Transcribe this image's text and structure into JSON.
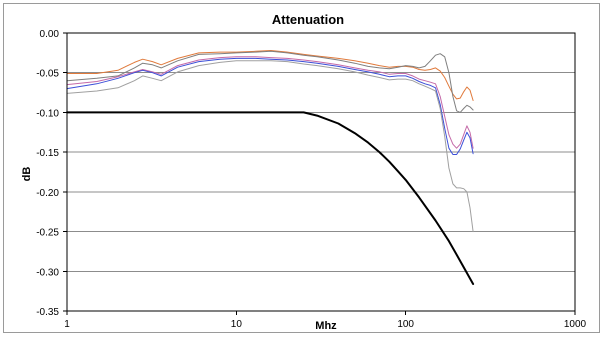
{
  "chart_data": {
    "type": "line",
    "title": "Attenuation",
    "xlabel": "Mhz",
    "ylabel": "dB",
    "x_scale": "log",
    "xlim": [
      1,
      1000
    ],
    "ylim": [
      -0.35,
      0.0
    ],
    "x_ticks": [
      "1",
      "10",
      "100",
      "1000"
    ],
    "y_ticks": [
      "0.00",
      "-0.05",
      "-0.10",
      "-0.15",
      "-0.20",
      "-0.25",
      "-0.30",
      "-0.35"
    ],
    "grid": "horizontal",
    "legend": "none",
    "series": [
      {
        "color": "#e07a3c",
        "width": 1,
        "points": [
          [
            1,
            -0.051
          ],
          [
            1.5,
            -0.051
          ],
          [
            2,
            -0.047
          ],
          [
            2.5,
            -0.037
          ],
          [
            2.8,
            -0.033
          ],
          [
            3.2,
            -0.036
          ],
          [
            3.6,
            -0.04
          ],
          [
            4.5,
            -0.032
          ],
          [
            6,
            -0.025
          ],
          [
            8,
            -0.024
          ],
          [
            10,
            -0.024
          ],
          [
            13,
            -0.023
          ],
          [
            16,
            -0.022
          ],
          [
            20,
            -0.024
          ],
          [
            25,
            -0.027
          ],
          [
            30,
            -0.029
          ],
          [
            40,
            -0.032
          ],
          [
            50,
            -0.035
          ],
          [
            60,
            -0.038
          ],
          [
            70,
            -0.041
          ],
          [
            80,
            -0.043
          ],
          [
            90,
            -0.042
          ],
          [
            100,
            -0.042
          ],
          [
            110,
            -0.043
          ],
          [
            120,
            -0.046
          ],
          [
            130,
            -0.047
          ],
          [
            140,
            -0.046
          ],
          [
            150,
            -0.044
          ],
          [
            160,
            -0.048
          ],
          [
            170,
            -0.056
          ],
          [
            180,
            -0.067
          ],
          [
            190,
            -0.077
          ],
          [
            200,
            -0.083
          ],
          [
            210,
            -0.082
          ],
          [
            220,
            -0.074
          ],
          [
            230,
            -0.068
          ],
          [
            240,
            -0.072
          ],
          [
            250,
            -0.085
          ]
        ]
      },
      {
        "color": "#7f7f7f",
        "width": 1,
        "points": [
          [
            1,
            -0.06
          ],
          [
            1.5,
            -0.057
          ],
          [
            2,
            -0.054
          ],
          [
            2.5,
            -0.044
          ],
          [
            2.8,
            -0.038
          ],
          [
            3.2,
            -0.04
          ],
          [
            3.6,
            -0.044
          ],
          [
            4.5,
            -0.035
          ],
          [
            6,
            -0.027
          ],
          [
            8,
            -0.026
          ],
          [
            10,
            -0.025
          ],
          [
            13,
            -0.024
          ],
          [
            16,
            -0.023
          ],
          [
            20,
            -0.025
          ],
          [
            25,
            -0.028
          ],
          [
            30,
            -0.03
          ],
          [
            40,
            -0.034
          ],
          [
            50,
            -0.038
          ],
          [
            60,
            -0.042
          ],
          [
            70,
            -0.044
          ],
          [
            80,
            -0.045
          ],
          [
            90,
            -0.043
          ],
          [
            100,
            -0.041
          ],
          [
            110,
            -0.042
          ],
          [
            120,
            -0.044
          ],
          [
            130,
            -0.042
          ],
          [
            140,
            -0.035
          ],
          [
            150,
            -0.028
          ],
          [
            160,
            -0.026
          ],
          [
            170,
            -0.03
          ],
          [
            180,
            -0.05
          ],
          [
            190,
            -0.08
          ],
          [
            200,
            -0.098
          ],
          [
            210,
            -0.1
          ],
          [
            220,
            -0.095
          ],
          [
            230,
            -0.091
          ],
          [
            240,
            -0.093
          ],
          [
            250,
            -0.097
          ]
        ]
      },
      {
        "color": "#c46aa8",
        "width": 1,
        "points": [
          [
            1,
            -0.065
          ],
          [
            1.5,
            -0.061
          ],
          [
            2,
            -0.055
          ],
          [
            2.5,
            -0.049
          ],
          [
            2.8,
            -0.046
          ],
          [
            3.2,
            -0.049
          ],
          [
            3.6,
            -0.052
          ],
          [
            4.5,
            -0.041
          ],
          [
            6,
            -0.034
          ],
          [
            8,
            -0.031
          ],
          [
            10,
            -0.03
          ],
          [
            13,
            -0.03
          ],
          [
            16,
            -0.031
          ],
          [
            20,
            -0.032
          ],
          [
            25,
            -0.034
          ],
          [
            30,
            -0.036
          ],
          [
            40,
            -0.04
          ],
          [
            50,
            -0.044
          ],
          [
            60,
            -0.047
          ],
          [
            70,
            -0.049
          ],
          [
            80,
            -0.052
          ],
          [
            90,
            -0.051
          ],
          [
            100,
            -0.051
          ],
          [
            110,
            -0.054
          ],
          [
            120,
            -0.058
          ],
          [
            130,
            -0.06
          ],
          [
            140,
            -0.062
          ],
          [
            150,
            -0.064
          ],
          [
            160,
            -0.08
          ],
          [
            170,
            -0.105
          ],
          [
            180,
            -0.128
          ],
          [
            190,
            -0.14
          ],
          [
            200,
            -0.145
          ],
          [
            210,
            -0.14
          ],
          [
            220,
            -0.128
          ],
          [
            230,
            -0.117
          ],
          [
            240,
            -0.125
          ],
          [
            250,
            -0.145
          ]
        ]
      },
      {
        "color": "#3c4fd8",
        "width": 1,
        "points": [
          [
            1,
            -0.07
          ],
          [
            1.5,
            -0.064
          ],
          [
            2,
            -0.057
          ],
          [
            2.5,
            -0.05
          ],
          [
            2.8,
            -0.047
          ],
          [
            3.2,
            -0.05
          ],
          [
            3.6,
            -0.054
          ],
          [
            4.5,
            -0.043
          ],
          [
            6,
            -0.036
          ],
          [
            8,
            -0.033
          ],
          [
            10,
            -0.032
          ],
          [
            13,
            -0.032
          ],
          [
            16,
            -0.033
          ],
          [
            20,
            -0.034
          ],
          [
            25,
            -0.036
          ],
          [
            30,
            -0.038
          ],
          [
            40,
            -0.042
          ],
          [
            50,
            -0.046
          ],
          [
            60,
            -0.049
          ],
          [
            70,
            -0.052
          ],
          [
            80,
            -0.055
          ],
          [
            90,
            -0.054
          ],
          [
            100,
            -0.054
          ],
          [
            110,
            -0.057
          ],
          [
            120,
            -0.061
          ],
          [
            130,
            -0.064
          ],
          [
            140,
            -0.066
          ],
          [
            150,
            -0.069
          ],
          [
            160,
            -0.09
          ],
          [
            170,
            -0.12
          ],
          [
            180,
            -0.145
          ],
          [
            190,
            -0.153
          ],
          [
            200,
            -0.153
          ],
          [
            210,
            -0.146
          ],
          [
            220,
            -0.135
          ],
          [
            230,
            -0.125
          ],
          [
            240,
            -0.132
          ],
          [
            250,
            -0.152
          ]
        ]
      },
      {
        "color": "#a0a0a0",
        "width": 1,
        "points": [
          [
            1,
            -0.076
          ],
          [
            1.5,
            -0.073
          ],
          [
            2,
            -0.069
          ],
          [
            2.5,
            -0.06
          ],
          [
            2.8,
            -0.054
          ],
          [
            3.2,
            -0.057
          ],
          [
            3.6,
            -0.06
          ],
          [
            4.5,
            -0.049
          ],
          [
            6,
            -0.041
          ],
          [
            8,
            -0.037
          ],
          [
            10,
            -0.035
          ],
          [
            13,
            -0.035
          ],
          [
            16,
            -0.035
          ],
          [
            20,
            -0.036
          ],
          [
            25,
            -0.039
          ],
          [
            30,
            -0.041
          ],
          [
            40,
            -0.045
          ],
          [
            50,
            -0.049
          ],
          [
            60,
            -0.053
          ],
          [
            70,
            -0.056
          ],
          [
            80,
            -0.059
          ],
          [
            90,
            -0.058
          ],
          [
            100,
            -0.058
          ],
          [
            110,
            -0.06
          ],
          [
            120,
            -0.064
          ],
          [
            130,
            -0.067
          ],
          [
            140,
            -0.07
          ],
          [
            150,
            -0.073
          ],
          [
            160,
            -0.095
          ],
          [
            170,
            -0.13
          ],
          [
            180,
            -0.17
          ],
          [
            190,
            -0.19
          ],
          [
            200,
            -0.195
          ],
          [
            210,
            -0.195
          ],
          [
            220,
            -0.196
          ],
          [
            230,
            -0.2
          ],
          [
            240,
            -0.22
          ],
          [
            250,
            -0.25
          ]
        ]
      },
      {
        "color": "#000000",
        "width": 2,
        "points": [
          [
            1,
            -0.1
          ],
          [
            2,
            -0.1
          ],
          [
            5,
            -0.1
          ],
          [
            10,
            -0.1
          ],
          [
            20,
            -0.1
          ],
          [
            25,
            -0.1
          ],
          [
            30,
            -0.104
          ],
          [
            40,
            -0.114
          ],
          [
            50,
            -0.126
          ],
          [
            60,
            -0.138
          ],
          [
            70,
            -0.15
          ],
          [
            80,
            -0.162
          ],
          [
            90,
            -0.174
          ],
          [
            100,
            -0.185
          ],
          [
            120,
            -0.207
          ],
          [
            150,
            -0.236
          ],
          [
            180,
            -0.262
          ],
          [
            200,
            -0.279
          ],
          [
            220,
            -0.295
          ],
          [
            250,
            -0.316
          ]
        ]
      }
    ]
  }
}
